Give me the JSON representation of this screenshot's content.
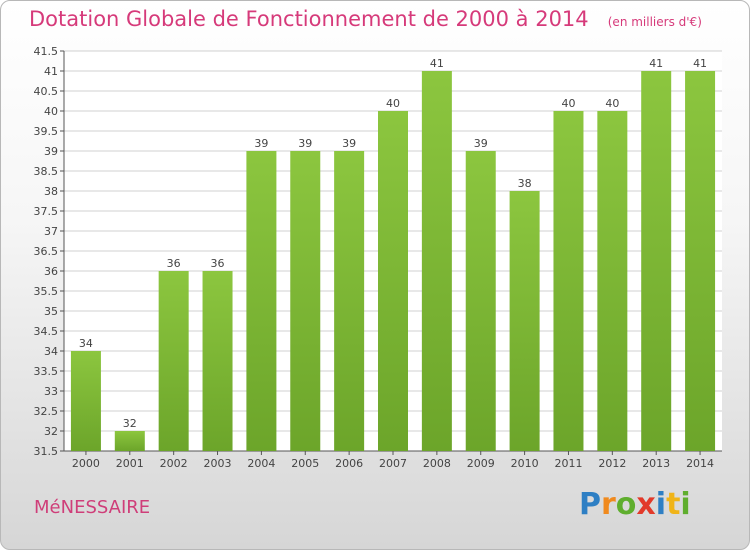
{
  "header": {
    "title": "Dotation Globale de Fonctionnement de 2000 à 2014",
    "subtitle": "(en milliers d'€)"
  },
  "footer": {
    "commune": "MéNESSAIRE",
    "logo_text": "Proxiti"
  },
  "colors": {
    "bar": "#8cc63f",
    "bar_dark": "#6ca52a",
    "title": "#d63a7a",
    "grid": "#d0d0d0"
  },
  "chart_data": {
    "type": "bar",
    "categories": [
      "2000",
      "2001",
      "2002",
      "2003",
      "2004",
      "2005",
      "2006",
      "2007",
      "2008",
      "2009",
      "2010",
      "2011",
      "2012",
      "2013",
      "2014"
    ],
    "values": [
      34,
      32,
      36,
      36,
      39,
      39,
      39,
      40,
      41,
      39,
      38,
      40,
      40,
      41,
      41
    ],
    "title": "Dotation Globale de Fonctionnement de 2000 à 2014",
    "subtitle": "(en milliers d'€)",
    "xlabel": "",
    "ylabel": "",
    "ylim": [
      31.5,
      41.5
    ],
    "ytick_step": 0.5,
    "grid": true,
    "legend": "none"
  }
}
